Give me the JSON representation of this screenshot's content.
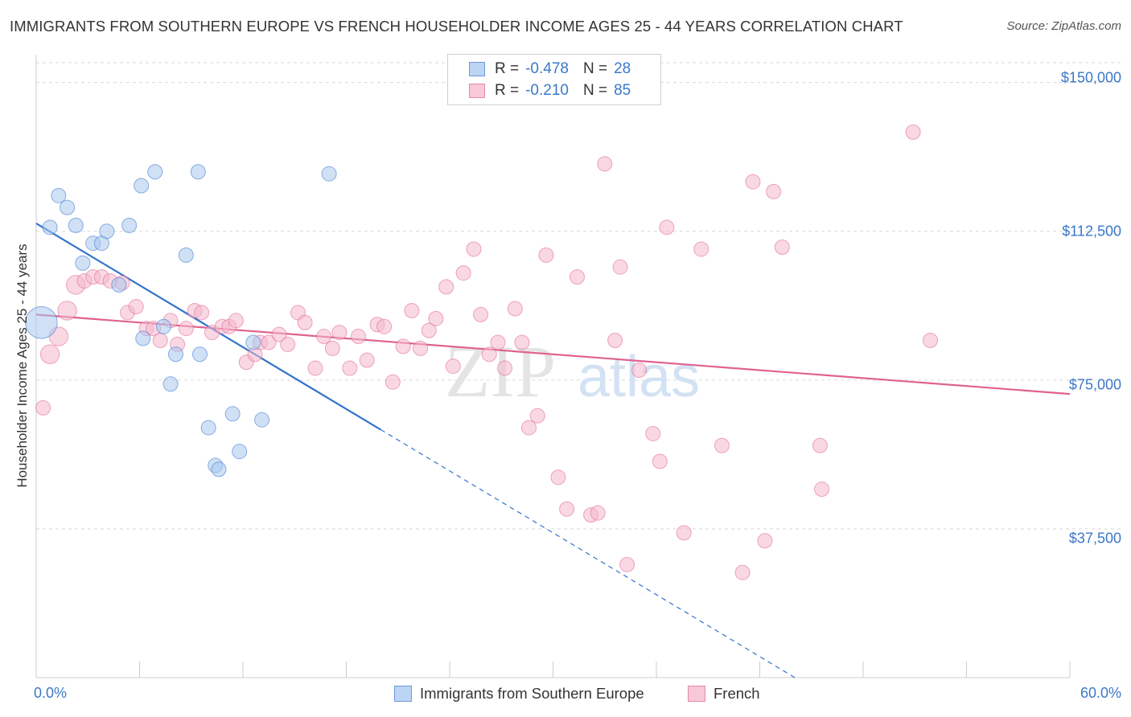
{
  "title": "IMMIGRANTS FROM SOUTHERN EUROPE VS FRENCH HOUSEHOLDER INCOME AGES 25 - 44 YEARS CORRELATION CHART",
  "source": "Source: ZipAtlas.com",
  "watermark": {
    "zip": "ZIP",
    "atlas": "atlas"
  },
  "legend": {
    "rows": [
      {
        "r_label": "R =",
        "r_value": "-0.478",
        "n_label": "N =",
        "n_value": "28"
      },
      {
        "r_label": "R =",
        "r_value": "-0.210",
        "n_label": "N =",
        "n_value": "85"
      }
    ]
  },
  "chart_data": {
    "type": "scatter",
    "ylabel": "Householder Income Ages 25 - 44 years",
    "x_tick_labels": [
      "0.0%",
      "60.0%"
    ],
    "y_tick_labels": [
      "$150,000",
      "$112,500",
      "$75,000",
      "$37,500"
    ],
    "xlim": [
      0,
      60
    ],
    "ylim": [
      0,
      155000
    ],
    "y_ticks": [
      150000,
      112500,
      75000,
      37500
    ],
    "colors": {
      "blue": "#5b8ed6",
      "blue_fill": "#aac8ee",
      "pink": "#e46b96",
      "pink_fill": "#f4b8cc",
      "tick": "#3b78c9"
    },
    "series": [
      {
        "name": "Immigrants from Southern Europe",
        "color": "#3373cc",
        "fill": "#aac8ee",
        "trend": {
          "x0": 0,
          "y0": 114500,
          "x1": 20,
          "y1": 62500,
          "dash_to_x": 44.2
        },
        "points": [
          [
            0.3,
            89500,
            2.2
          ],
          [
            0.8,
            113500,
            1
          ],
          [
            1.3,
            121500,
            1
          ],
          [
            1.8,
            118500,
            1
          ],
          [
            2.3,
            114000,
            1
          ],
          [
            3.3,
            109500,
            1
          ],
          [
            2.7,
            104500,
            1
          ],
          [
            3.8,
            109500,
            1
          ],
          [
            4.1,
            112500,
            1
          ],
          [
            5.4,
            114000,
            1
          ],
          [
            6.1,
            124000,
            1
          ],
          [
            6.9,
            127500,
            1
          ],
          [
            9.4,
            127500,
            1
          ],
          [
            17.0,
            127000,
            1
          ],
          [
            8.7,
            106500,
            1
          ],
          [
            4.8,
            99000,
            1
          ],
          [
            7.4,
            88500,
            1
          ],
          [
            6.2,
            85500,
            1
          ],
          [
            8.1,
            81500,
            1
          ],
          [
            9.5,
            81500,
            1
          ],
          [
            7.8,
            74000,
            1
          ],
          [
            12.6,
            84500,
            1
          ],
          [
            11.4,
            66500,
            1
          ],
          [
            10.0,
            63000,
            1
          ],
          [
            11.8,
            57000,
            1
          ],
          [
            10.4,
            53500,
            1
          ],
          [
            10.6,
            52500,
            1
          ],
          [
            13.1,
            65000,
            1
          ]
        ]
      },
      {
        "name": "French",
        "color": "#e0628f",
        "fill": "#f4b8cc",
        "trend": {
          "x0": 0,
          "y0": 91500,
          "x1": 60,
          "y1": 71500
        },
        "points": [
          [
            0.4,
            68000,
            1
          ],
          [
            0.8,
            81500,
            1.3
          ],
          [
            1.3,
            86000,
            1.3
          ],
          [
            1.8,
            92500,
            1.3
          ],
          [
            2.3,
            99000,
            1.3
          ],
          [
            2.8,
            100000,
            1
          ],
          [
            3.3,
            101000,
            1
          ],
          [
            3.8,
            101000,
            1
          ],
          [
            4.3,
            100000,
            1
          ],
          [
            5.0,
            99500,
            1
          ],
          [
            5.3,
            92000,
            1
          ],
          [
            5.8,
            93500,
            1
          ],
          [
            6.4,
            88000,
            1
          ],
          [
            6.8,
            88000,
            1
          ],
          [
            7.2,
            85000,
            1
          ],
          [
            7.8,
            90000,
            1
          ],
          [
            8.2,
            84000,
            1
          ],
          [
            8.7,
            88000,
            1
          ],
          [
            9.2,
            92500,
            1
          ],
          [
            9.6,
            92000,
            1
          ],
          [
            10.2,
            87000,
            1
          ],
          [
            10.8,
            88500,
            1
          ],
          [
            11.2,
            88500,
            1
          ],
          [
            11.6,
            90000,
            1
          ],
          [
            12.2,
            79500,
            1
          ],
          [
            12.7,
            81500,
            1
          ],
          [
            13.0,
            84500,
            1
          ],
          [
            13.5,
            84500,
            1
          ],
          [
            14.1,
            86500,
            1
          ],
          [
            14.6,
            84000,
            1
          ],
          [
            15.2,
            92000,
            1
          ],
          [
            15.6,
            89500,
            1
          ],
          [
            16.2,
            78000,
            1
          ],
          [
            16.7,
            86000,
            1
          ],
          [
            17.2,
            83000,
            1
          ],
          [
            17.6,
            87000,
            1
          ],
          [
            18.2,
            78000,
            1
          ],
          [
            18.7,
            86000,
            1
          ],
          [
            19.2,
            80000,
            1
          ],
          [
            19.8,
            89000,
            1
          ],
          [
            20.2,
            88500,
            1
          ],
          [
            20.7,
            74500,
            1
          ],
          [
            21.3,
            83500,
            1
          ],
          [
            21.8,
            92500,
            1
          ],
          [
            22.3,
            83000,
            1
          ],
          [
            22.8,
            87500,
            1
          ],
          [
            23.2,
            90500,
            1
          ],
          [
            23.8,
            98500,
            1
          ],
          [
            24.2,
            78500,
            1
          ],
          [
            24.8,
            102000,
            1
          ],
          [
            25.4,
            108000,
            1
          ],
          [
            25.8,
            91500,
            1
          ],
          [
            26.3,
            81500,
            1
          ],
          [
            26.8,
            84500,
            1
          ],
          [
            27.2,
            78000,
            1
          ],
          [
            27.8,
            93000,
            1
          ],
          [
            28.2,
            84500,
            1
          ],
          [
            28.6,
            63000,
            1
          ],
          [
            29.1,
            66000,
            1
          ],
          [
            29.6,
            106500,
            1
          ],
          [
            30.3,
            50500,
            1
          ],
          [
            30.8,
            42500,
            1
          ],
          [
            31.4,
            101000,
            1
          ],
          [
            32.2,
            41000,
            1
          ],
          [
            32.6,
            41500,
            1
          ],
          [
            33.0,
            129500,
            1
          ],
          [
            33.6,
            85000,
            1
          ],
          [
            33.9,
            103500,
            1
          ],
          [
            34.3,
            28500,
            1
          ],
          [
            35.0,
            77500,
            1
          ],
          [
            35.8,
            61500,
            1
          ],
          [
            36.2,
            54500,
            1
          ],
          [
            36.6,
            113500,
            1
          ],
          [
            37.6,
            36500,
            1
          ],
          [
            38.6,
            108000,
            1
          ],
          [
            39.8,
            58500,
            1
          ],
          [
            41.0,
            26500,
            1
          ],
          [
            41.6,
            125000,
            1
          ],
          [
            42.3,
            34500,
            1
          ],
          [
            42.8,
            122500,
            1
          ],
          [
            43.3,
            108500,
            1
          ],
          [
            45.5,
            58500,
            1
          ],
          [
            45.6,
            47500,
            1
          ],
          [
            50.9,
            137500,
            1
          ],
          [
            51.9,
            85000,
            1
          ]
        ]
      }
    ]
  },
  "bottom_legend": {
    "items": [
      "Immigrants from Southern Europe",
      "French"
    ]
  }
}
